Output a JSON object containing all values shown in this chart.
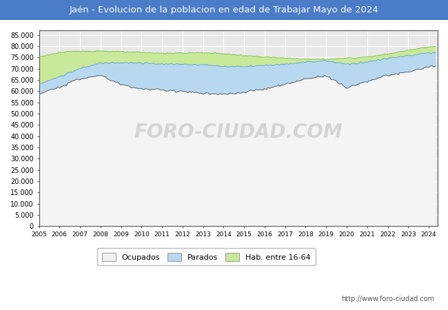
{
  "title": "Jaén - Evolucion de la poblacion en edad de Trabajar Mayo de 2024",
  "title_bg_color": "#4a7cc7",
  "title_text_color": "white",
  "legend_labels": [
    "Ocupados",
    "Parados",
    "Hab. entre 16-64"
  ],
  "legend_facecolors": [
    "#f0f0f0",
    "#b8d8f0",
    "#c8e89a"
  ],
  "legend_edgecolors": [
    "#888888",
    "#888888",
    "#888888"
  ],
  "watermark": "http://www.foro-ciudad.com",
  "watermark_big": "FORO-CIUDAD.COM",
  "bg_color": "#ffffff",
  "plot_bg_color": "#e8e8e8",
  "grid_color": "#ffffff",
  "fill_ocu_color": "#f4f4f4",
  "fill_par_color": "#b8d8f0",
  "fill_hab_color": "#c8e89a",
  "line_ocu_color": "#606060",
  "line_par_color": "#60a0e0",
  "line_hab_color": "#80c040",
  "xlim_start": 2005,
  "xlim_end": 2024.42,
  "ylim_min": 0,
  "ylim_max": 87000,
  "ytick_step": 5000,
  "years_x": [
    2005,
    2006,
    2007,
    2008,
    2009,
    2010,
    2011,
    2012,
    2013,
    2014,
    2015,
    2016,
    2017,
    2018,
    2019,
    2020,
    2021,
    2022,
    2023,
    2024
  ],
  "hab1664_y": [
    75200,
    77200,
    77800,
    77900,
    77500,
    77200,
    76900,
    77000,
    77100,
    76700,
    75800,
    75200,
    74700,
    74300,
    74200,
    74700,
    75200,
    76500,
    78200,
    79800
  ],
  "par_top_y": [
    63000,
    66500,
    70000,
    72500,
    72800,
    72500,
    72000,
    72000,
    71800,
    71000,
    71000,
    71500,
    72000,
    73000,
    73500,
    72000,
    73000,
    74500,
    75800,
    77000
  ],
  "ocu_y": [
    58500,
    62000,
    65500,
    67000,
    63000,
    61000,
    60500,
    60000,
    59000,
    58500,
    59500,
    61000,
    63000,
    65500,
    67000,
    61500,
    64500,
    67000,
    68500,
    71000
  ]
}
